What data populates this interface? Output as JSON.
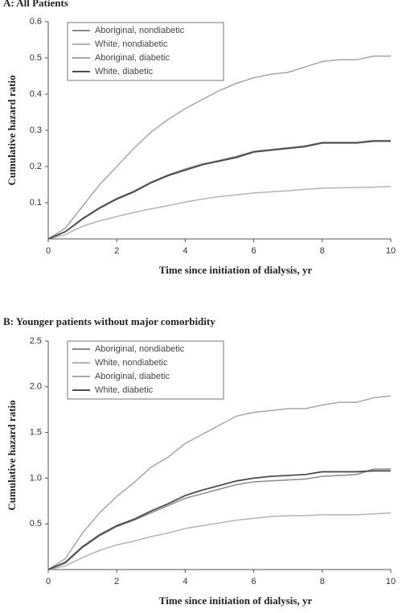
{
  "chart_data": [
    {
      "type": "line",
      "title": "A: All Patients",
      "x_label": "Time since initiation of dialysis, yr",
      "y_label": "Cumulative hazard ratio",
      "x": [
        0,
        0.5,
        1,
        1.5,
        2,
        2.5,
        3,
        3.5,
        4,
        4.5,
        5,
        5.5,
        6,
        6.5,
        7,
        7.5,
        8,
        8.5,
        9,
        9.5,
        10
      ],
      "xlim": [
        0,
        10
      ],
      "xticks": [
        0,
        2,
        4,
        6,
        8,
        10
      ],
      "ylim": [
        0,
        0.6
      ],
      "yticks": [
        0.1,
        0.2,
        0.3,
        0.4,
        0.5,
        0.6
      ],
      "series": [
        {
          "name": "Aboriginal, nondiabetic",
          "color": "#8a8a8a",
          "values": [
            0,
            0.02,
            0.057,
            0.087,
            0.112,
            0.132,
            0.157,
            0.177,
            0.193,
            0.207,
            0.217,
            0.228,
            0.242,
            0.247,
            0.252,
            0.257,
            0.267,
            0.267,
            0.267,
            0.272,
            0.272
          ]
        },
        {
          "name": "White, nondiabetic",
          "color": "#b4b4b4",
          "values": [
            0,
            0.012,
            0.035,
            0.05,
            0.062,
            0.073,
            0.083,
            0.092,
            0.102,
            0.11,
            0.117,
            0.122,
            0.127,
            0.13,
            0.133,
            0.137,
            0.14,
            0.141,
            0.142,
            0.143,
            0.145
          ]
        },
        {
          "name": "Aboriginal, diabetic",
          "color": "#a6a6a6",
          "values": [
            0,
            0.03,
            0.09,
            0.15,
            0.2,
            0.25,
            0.295,
            0.33,
            0.36,
            0.385,
            0.41,
            0.43,
            0.445,
            0.455,
            0.46,
            0.475,
            0.49,
            0.495,
            0.495,
            0.505,
            0.505
          ]
        },
        {
          "name": "White, diabetic",
          "color": "#4d4d4d",
          "values": [
            0,
            0.02,
            0.055,
            0.085,
            0.11,
            0.13,
            0.155,
            0.175,
            0.19,
            0.205,
            0.215,
            0.225,
            0.24,
            0.245,
            0.25,
            0.255,
            0.265,
            0.265,
            0.265,
            0.27,
            0.27
          ]
        }
      ]
    },
    {
      "type": "line",
      "title": "B: Younger patients without major comorbidity",
      "x_label": "Time since initiation of dialysis, yr",
      "y_label": "Cumulative hazard ratio",
      "x": [
        0,
        0.5,
        1,
        1.5,
        2,
        2.5,
        3,
        3.5,
        4,
        4.5,
        5,
        5.5,
        6,
        6.5,
        7,
        7.5,
        8,
        8.5,
        9,
        9.5,
        10
      ],
      "xlim": [
        0,
        10
      ],
      "xticks": [
        0,
        2,
        4,
        6,
        8,
        10
      ],
      "ylim": [
        0,
        2.5
      ],
      "yticks": [
        0.5,
        {
          "value": 1,
          "label": "1.0"
        },
        1.5,
        {
          "value": 2,
          "label": "2.0"
        },
        2.5
      ],
      "series": [
        {
          "name": "Aboriginal, nondiabetic",
          "color": "#8a8a8a",
          "values": [
            0,
            0.07,
            0.24,
            0.37,
            0.47,
            0.54,
            0.62,
            0.7,
            0.78,
            0.83,
            0.88,
            0.93,
            0.96,
            0.97,
            0.98,
            0.99,
            1.02,
            1.03,
            1.04,
            1.1,
            1.1
          ]
        },
        {
          "name": "White, nondiabetic",
          "color": "#b4b4b4",
          "values": [
            0,
            0.04,
            0.13,
            0.21,
            0.27,
            0.31,
            0.36,
            0.4,
            0.45,
            0.48,
            0.51,
            0.54,
            0.56,
            0.58,
            0.59,
            0.59,
            0.6,
            0.6,
            0.6,
            0.61,
            0.62
          ]
        },
        {
          "name": "Aboriginal, diabetic",
          "color": "#a6a6a6",
          "values": [
            0,
            0.12,
            0.4,
            0.62,
            0.8,
            0.95,
            1.12,
            1.23,
            1.38,
            1.48,
            1.58,
            1.68,
            1.72,
            1.74,
            1.76,
            1.76,
            1.8,
            1.83,
            1.83,
            1.88,
            1.9
          ]
        },
        {
          "name": "White, diabetic",
          "color": "#4d4d4d",
          "values": [
            0,
            0.08,
            0.25,
            0.38,
            0.48,
            0.55,
            0.64,
            0.72,
            0.81,
            0.87,
            0.92,
            0.97,
            1.0,
            1.02,
            1.03,
            1.04,
            1.07,
            1.07,
            1.07,
            1.08,
            1.08
          ]
        }
      ]
    }
  ]
}
